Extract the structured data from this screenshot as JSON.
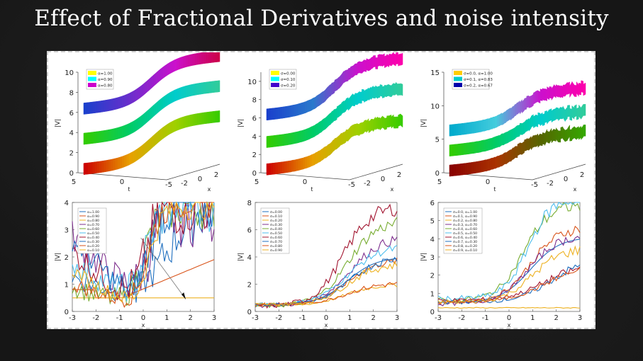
{
  "slide": {
    "title": "Effect of Fractional Derivatives and noise intensity"
  },
  "chart_data": [
    {
      "type": "surface3d",
      "zlabel": "|V|",
      "tlabel": "t",
      "xlabel": "x",
      "z_ticks": [
        "0",
        "2",
        "4",
        "6",
        "8",
        "10"
      ],
      "t_ticks": [
        "5",
        "0",
        "-5"
      ],
      "x_ticks": [
        "-2",
        "0",
        "2"
      ],
      "legend": [
        "α=1.00",
        "α=0.90",
        "α=0.80"
      ],
      "legend_colors": [
        "#ffff00",
        "#00ffff",
        "#cc00cc"
      ],
      "layers": [
        {
          "base": 0.5,
          "height": 4.0,
          "colors": [
            "#cc0000",
            "#e8a000",
            "#9fd000",
            "#33cc00"
          ]
        },
        {
          "base": 3.5,
          "height": 4.0,
          "colors": [
            "#33cc00",
            "#00cc66",
            "#00cccc",
            "#33cc99"
          ]
        },
        {
          "base": 6.5,
          "height": 4.0,
          "colors": [
            "#1a40cc",
            "#6a2ecc",
            "#cc10cc",
            "#cc0044"
          ]
        }
      ],
      "zlim": [
        0,
        10
      ],
      "noise": 0
    },
    {
      "type": "surface3d",
      "zlabel": "|V|",
      "tlabel": "t",
      "xlabel": "x",
      "z_ticks": [
        "0",
        "2",
        "4",
        "6",
        "8",
        "10"
      ],
      "t_ticks": [
        "5",
        "0",
        "-5"
      ],
      "x_ticks": [
        "-2",
        "0",
        "2"
      ],
      "legend": [
        "σ=0.00",
        "σ=0.10",
        "σ=0.20"
      ],
      "legend_colors": [
        "#ffff00",
        "#00ffff",
        "#4400cc"
      ],
      "layers": [
        {
          "base": 0.5,
          "height": 4.0,
          "colors": [
            "#cc0000",
            "#e8a000",
            "#9fd000",
            "#33cc00"
          ]
        },
        {
          "base": 3.5,
          "height": 4.5,
          "colors": [
            "#33cc00",
            "#00cc66",
            "#00cccc",
            "#33cc99"
          ]
        },
        {
          "base": 6.5,
          "height": 4.8,
          "colors": [
            "#1a40cc",
            "#2a7acc",
            "#cc10cc",
            "#ff00aa"
          ]
        }
      ],
      "zlim": [
        0,
        11
      ],
      "noise": 1
    },
    {
      "type": "surface3d",
      "zlabel": "|V|",
      "tlabel": "t",
      "xlabel": "x",
      "z_ticks": [
        "0",
        "5",
        "10",
        "15"
      ],
      "t_ticks": [
        "5",
        "0",
        "-5"
      ],
      "x_ticks": [
        "-2",
        "0",
        "2"
      ],
      "legend": [
        "σ=0.0, α=1.00",
        "σ=0.1, α=0.83",
        "σ=0.2, α=0.67"
      ],
      "legend_colors": [
        "#ffcc00",
        "#00cccc",
        "#0000aa"
      ],
      "layers": [
        {
          "base": 0.5,
          "height": 4.0,
          "colors": [
            "#880000",
            "#aa3300",
            "#556600",
            "#33aa00"
          ]
        },
        {
          "base": 3.5,
          "height": 4.0,
          "colors": [
            "#33cc00",
            "#00cc66",
            "#00cccc",
            "#33cc99"
          ]
        },
        {
          "base": 6.5,
          "height": 4.5,
          "colors": [
            "#00aacc",
            "#44ccdd",
            "#cc10cc",
            "#ff00aa"
          ]
        }
      ],
      "zlim": [
        0,
        15
      ],
      "noise": 2
    },
    {
      "type": "line",
      "xlabel": "x",
      "ylabel": "|V|",
      "xlim": [
        -3,
        3
      ],
      "ylim": [
        0,
        4
      ],
      "x_ticks": [
        "-3",
        "-2",
        "-1",
        "0",
        "1",
        "2",
        "3"
      ],
      "y_ticks": [
        "0",
        "1",
        "2",
        "3",
        "4"
      ],
      "series": [
        {
          "name": "α=1.00",
          "color": "#1f6fbf",
          "fn": "sig",
          "p": [
            0.45,
            3.5,
            1.6,
            1.0,
            1.1
          ]
        },
        {
          "name": "α=0.90",
          "color": "#d95319",
          "fn": "line",
          "p": [
            0.5,
            1.8,
            -1.5,
            0,
            0
          ]
        },
        {
          "name": "α=0.80",
          "color": "#edb120",
          "fn": "flat",
          "p": [
            0.5,
            0,
            0,
            0,
            0
          ]
        },
        {
          "name": "α=0.70",
          "color": "#7e2f8e",
          "fn": "sig",
          "p": [
            0.35,
            3.5,
            2.6,
            0.2,
            1.5
          ]
        },
        {
          "name": "α=0.60",
          "color": "#77ac30",
          "fn": "sig",
          "p": [
            0.1,
            3.8,
            2.9,
            0.0,
            0.9
          ]
        },
        {
          "name": "α=0.50",
          "color": "#4dbeee",
          "fn": "sig",
          "p": [
            0.4,
            3.6,
            3.0,
            0.1,
            1.1
          ]
        },
        {
          "name": "α=0.40",
          "color": "#a2142f",
          "fn": "sig",
          "p": [
            0.3,
            3.7,
            3.1,
            0.1,
            1.3
          ]
        },
        {
          "name": "α=0.30",
          "color": "#1f6fbf",
          "fn": "sig",
          "p": [
            0.25,
            3.8,
            3.2,
            0.2,
            1.2
          ]
        },
        {
          "name": "α=0.20",
          "color": "#d95319",
          "fn": "sig",
          "p": [
            0.2,
            3.9,
            3.3,
            0.2,
            0.7
          ]
        },
        {
          "name": "α=0.10",
          "color": "#edb120",
          "fn": "sig",
          "p": [
            0.15,
            3.8,
            3.4,
            0.25,
            0.6
          ]
        }
      ]
    },
    {
      "type": "line",
      "xlabel": "x",
      "ylabel": "|V|",
      "xlim": [
        -3,
        3
      ],
      "ylim": [
        0,
        8
      ],
      "x_ticks": [
        "-3",
        "-2",
        "-1",
        "0",
        "1",
        "2",
        "3"
      ],
      "y_ticks": [
        "0",
        "2",
        "4",
        "6",
        "8"
      ],
      "series": [
        {
          "name": "σ=0.00",
          "color": "#1f6fbf",
          "fn": "sig",
          "p": [
            0.5,
            3.5,
            1.6,
            0.9,
            0
          ]
        },
        {
          "name": "σ=0.10",
          "color": "#d95319",
          "fn": "sig",
          "p": [
            0.5,
            3.3,
            1.6,
            0.9,
            0.25
          ]
        },
        {
          "name": "σ=0.20",
          "color": "#edb120",
          "fn": "sig",
          "p": [
            0.4,
            1.6,
            1.5,
            0.8,
            0.15
          ]
        },
        {
          "name": "σ=0.30",
          "color": "#7e2f8e",
          "fn": "sig",
          "p": [
            0.4,
            5.1,
            1.5,
            1.0,
            0.35
          ]
        },
        {
          "name": "σ=0.40",
          "color": "#77ac30",
          "fn": "sig",
          "p": [
            0.4,
            6.3,
            1.6,
            0.9,
            0.45
          ]
        },
        {
          "name": "σ=0.50",
          "color": "#4dbeee",
          "fn": "sig",
          "p": [
            0.5,
            4.3,
            1.5,
            0.9,
            0.3
          ]
        },
        {
          "name": "σ=0.60",
          "color": "#a2142f",
          "fn": "sig",
          "p": [
            0.4,
            7.3,
            1.7,
            0.7,
            0.55
          ]
        },
        {
          "name": "σ=0.70",
          "color": "#1f6fbf",
          "fn": "sig",
          "p": [
            0.5,
            3.5,
            1.6,
            1.0,
            0.3
          ]
        },
        {
          "name": "σ=0.80",
          "color": "#d95319",
          "fn": "sig",
          "p": [
            0.5,
            1.6,
            1.5,
            0.9,
            0.2
          ]
        },
        {
          "name": "σ=0.90",
          "color": "#edb120",
          "fn": "sig",
          "p": [
            0.5,
            3.0,
            1.6,
            0.9,
            0.3
          ]
        }
      ]
    },
    {
      "type": "line",
      "xlabel": "x",
      "ylabel": "|V|",
      "xlim": [
        -3,
        3
      ],
      "ylim": [
        0,
        6
      ],
      "x_ticks": [
        "-3",
        "-2",
        "-1",
        "0",
        "1",
        "2",
        "3"
      ],
      "y_ticks": [
        "0",
        "1",
        "2",
        "3",
        "4",
        "5",
        "6"
      ],
      "series": [
        {
          "name": "σ=0.0, α=1.00",
          "color": "#1f6fbf",
          "fn": "sig",
          "p": [
            0.5,
            3.6,
            1.6,
            0.9,
            0
          ]
        },
        {
          "name": "σ=0.1, α=0.90",
          "color": "#d95319",
          "fn": "sig",
          "p": [
            0.5,
            4.2,
            1.6,
            0.9,
            0.3
          ]
        },
        {
          "name": "σ=0.2, α=0.80",
          "color": "#edb120",
          "fn": "flat",
          "p": [
            0.2,
            0,
            0,
            0,
            0.05
          ]
        },
        {
          "name": "σ=0.3, α=0.70",
          "color": "#7e2f8e",
          "fn": "sig",
          "p": [
            0.4,
            3.8,
            1.6,
            0.8,
            0.25
          ]
        },
        {
          "name": "σ=0.4, α=0.60",
          "color": "#77ac30",
          "fn": "sig",
          "p": [
            0.6,
            5.3,
            1.8,
            0.6,
            0.35
          ]
        },
        {
          "name": "σ=0.5, α=0.50",
          "color": "#4dbeee",
          "fn": "sig",
          "p": [
            0.7,
            5.6,
            2.0,
            0.8,
            0.4
          ]
        },
        {
          "name": "σ=0.6, α=0.40",
          "color": "#a2142f",
          "fn": "sig",
          "p": [
            0.6,
            2.0,
            1.3,
            1.5,
            0.25
          ]
        },
        {
          "name": "σ=0.7, α=0.30",
          "color": "#1f6fbf",
          "fn": "sig",
          "p": [
            0.5,
            2.4,
            1.4,
            1.8,
            0.25
          ]
        },
        {
          "name": "σ=0.8, α=0.20",
          "color": "#d95319",
          "fn": "sig",
          "p": [
            0.5,
            2.0,
            1.3,
            1.5,
            0.2
          ]
        },
        {
          "name": "σ=0.9, α=0.10",
          "color": "#edb120",
          "fn": "sig",
          "p": [
            0.5,
            3.0,
            1.6,
            1.0,
            0.3
          ]
        }
      ]
    }
  ]
}
